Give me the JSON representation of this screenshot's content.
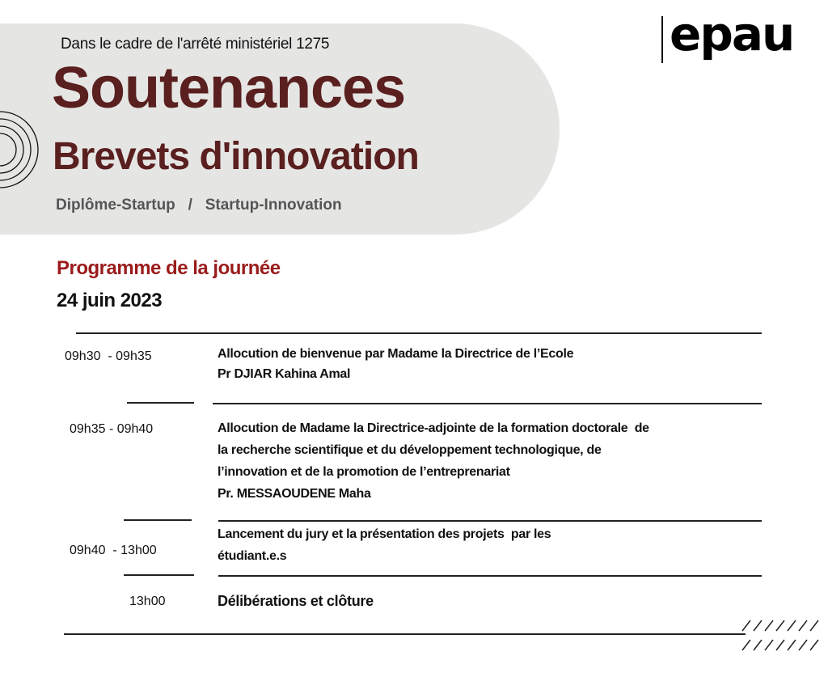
{
  "header": {
    "context": "Dans le cadre de l'arrêté ministériel 1275",
    "title": "Soutenances",
    "subtitle": "Brevets d'innovation",
    "tracks": "Diplôme-Startup   /   Startup-Innovation",
    "logo": "epau"
  },
  "program": {
    "heading": "Programme de la journée",
    "date": "24 juin 2023",
    "items": [
      {
        "time": "09h30  - 09h35",
        "lines": [
          "Allocution de bienvenue par Madame la Directrice de l’Ecole",
          "Pr DJIAR Kahina Amal"
        ]
      },
      {
        "time": "09h35 - 09h40",
        "lines": [
          "Allocution de Madame la Directrice-adjointe de la formation doctorale  de",
          "la recherche scientifique et du développement technologique, de",
          "l’innovation et de la promotion de l’entreprenariat",
          "Pr. MESSAOUDENE Maha"
        ]
      },
      {
        "time": "09h40  - 13h00",
        "lines": [
          "Lancement du jury et la présentation des projets  par les",
          "étudiant.e.s"
        ]
      },
      {
        "time": "13h00",
        "lines": [
          "Délibérations et clôture"
        ]
      }
    ]
  },
  "colors": {
    "title": "#5a1f1f",
    "heading": "#9b1b1b",
    "panel": "#e5e6e4"
  }
}
